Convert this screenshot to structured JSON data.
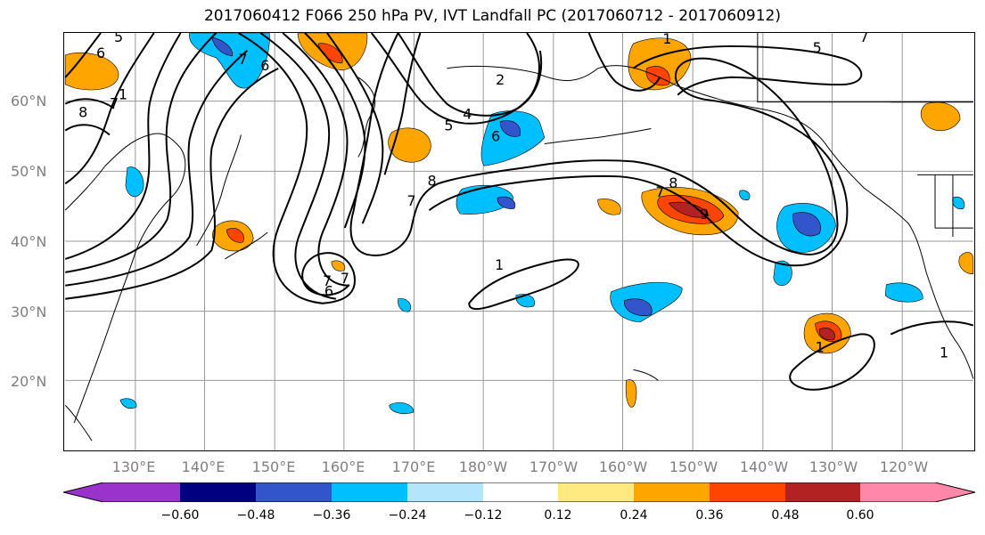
{
  "title": "2017060412 F066 250 hPa PV, IVT Landfall PC (2017060712 - 2017060912)",
  "lat_labels": [
    "60°N",
    "50°N",
    "40°N",
    "30°N",
    "20°N"
  ],
  "lon_labels": [
    "130°E",
    "140°E",
    "150°E",
    "160°E",
    "170°E",
    "180°W",
    "170°W",
    "160°W",
    "150°W",
    "140°W",
    "130°W",
    "120°W"
  ],
  "colorbar": {
    "ticks": [
      "−0.60",
      "−0.48",
      "−0.36",
      "−0.24",
      "−0.12",
      "0.12",
      "0.24",
      "0.36",
      "0.48",
      "0.60"
    ],
    "colors": [
      "#9933cc",
      "#000080",
      "#3355cc",
      "#00bfff",
      "#b3e5fc",
      "#ffffff",
      "#ffe980",
      "#ffa500",
      "#ff4500",
      "#b22222",
      "#ff88aa"
    ]
  },
  "contour_labels": [
    "5",
    "6",
    "7",
    "8",
    "7",
    "6",
    "1",
    "2",
    "4",
    "5",
    "6",
    "7",
    "8",
    "7",
    "6",
    "1",
    "7",
    "7",
    "8",
    "9",
    "5",
    "1",
    "1",
    "7",
    "1"
  ]
}
